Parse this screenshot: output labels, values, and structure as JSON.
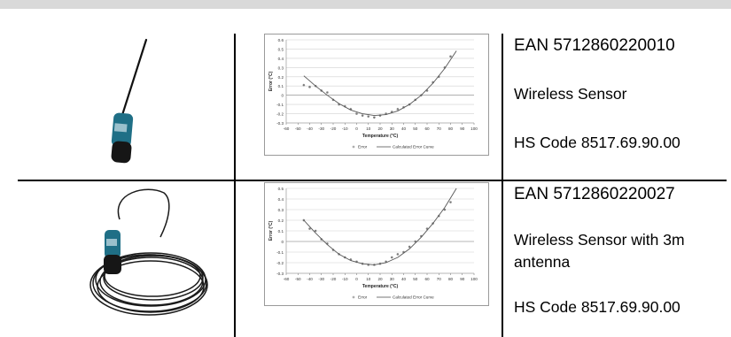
{
  "rows": [
    {
      "ean": "EAN 5712860220010",
      "name": "Wireless Sensor",
      "name_line2": "",
      "hs": "HS Code 8517.69.90.00",
      "chart_data": {
        "type": "scatter",
        "xlabel": "Temperature (°C)",
        "ylabel": "Error (°C)",
        "xlim": [
          -60,
          100
        ],
        "ylim": [
          -0.3,
          0.6
        ],
        "xticks": [
          -60,
          -50,
          -40,
          -30,
          -20,
          -10,
          0,
          10,
          20,
          30,
          40,
          50,
          60,
          70,
          80,
          90,
          100
        ],
        "yticks": [
          -0.3,
          -0.2,
          -0.1,
          0,
          0.1,
          0.2,
          0.3,
          0.4,
          0.5,
          0.6
        ],
        "grid": true,
        "legend_position": "bottom",
        "series": [
          {
            "name": "Error",
            "kind": "points",
            "x": [
              -45,
              -40,
              -35,
              -30,
              -25,
              -20,
              -15,
              -10,
              -5,
              0,
              5,
              10,
              15,
              20,
              25,
              30,
              35,
              40,
              45,
              50,
              55,
              60,
              65,
              70,
              75,
              80
            ],
            "y": [
              0.11,
              0.09,
              0.1,
              0.05,
              0.03,
              -0.05,
              -0.1,
              -0.12,
              -0.15,
              -0.2,
              -0.22,
              -0.23,
              -0.24,
              -0.22,
              -0.2,
              -0.18,
              -0.15,
              -0.13,
              -0.1,
              -0.05,
              0.0,
              0.05,
              0.14,
              0.2,
              0.3,
              0.42
            ]
          },
          {
            "name": "Calculated Error Curve",
            "kind": "curve",
            "x": [
              -45,
              -35,
              -25,
              -15,
              -5,
              5,
              15,
              25,
              35,
              45,
              55,
              65,
              75,
              85
            ],
            "y": [
              0.21,
              0.1,
              0.0,
              -0.09,
              -0.16,
              -0.2,
              -0.22,
              -0.21,
              -0.17,
              -0.1,
              0.0,
              0.13,
              0.29,
              0.48
            ]
          }
        ]
      }
    },
    {
      "ean": "EAN 5712860220027",
      "name": "Wireless Sensor with 3m",
      "name_line2": "antenna",
      "hs": "HS Code 8517.69.90.00",
      "chart_data": {
        "type": "scatter",
        "xlabel": "Temperature (°C)",
        "ylabel": "Error (°C)",
        "xlim": [
          -60,
          100
        ],
        "ylim": [
          -0.3,
          0.5
        ],
        "xticks": [
          -60,
          -50,
          -40,
          -30,
          -20,
          -10,
          0,
          10,
          20,
          30,
          40,
          50,
          60,
          70,
          80,
          90,
          100
        ],
        "yticks": [
          -0.3,
          -0.2,
          -0.1,
          0,
          0.1,
          0.2,
          0.3,
          0.4,
          0.5
        ],
        "grid": true,
        "legend_position": "bottom",
        "series": [
          {
            "name": "Error",
            "kind": "points",
            "x": [
              -45,
              -40,
              -35,
              -30,
              -25,
              -20,
              -15,
              -10,
              -5,
              0,
              5,
              10,
              15,
              20,
              25,
              30,
              35,
              40,
              45,
              50,
              55,
              60,
              65,
              70,
              75,
              80
            ],
            "y": [
              0.2,
              0.12,
              0.1,
              0.02,
              -0.02,
              -0.08,
              -0.12,
              -0.15,
              -0.17,
              -0.19,
              -0.21,
              -0.22,
              -0.22,
              -0.21,
              -0.19,
              -0.15,
              -0.12,
              -0.1,
              -0.05,
              0.0,
              0.05,
              0.12,
              0.17,
              0.24,
              0.3,
              0.37
            ]
          },
          {
            "name": "Calculated Error Curve",
            "kind": "curve",
            "x": [
              -45,
              -35,
              -25,
              -15,
              -5,
              5,
              15,
              25,
              35,
              45,
              55,
              65,
              75,
              85
            ],
            "y": [
              0.2,
              0.08,
              -0.03,
              -0.12,
              -0.18,
              -0.21,
              -0.22,
              -0.2,
              -0.15,
              -0.07,
              0.04,
              0.17,
              0.32,
              0.5
            ]
          }
        ]
      }
    }
  ],
  "colors": {
    "sensor_body": "#1f6f86",
    "cable": "#1a1a1a",
    "chart_grid": "#d0d0d0",
    "chart_point": "#777777",
    "chart_curve": "#555555"
  }
}
